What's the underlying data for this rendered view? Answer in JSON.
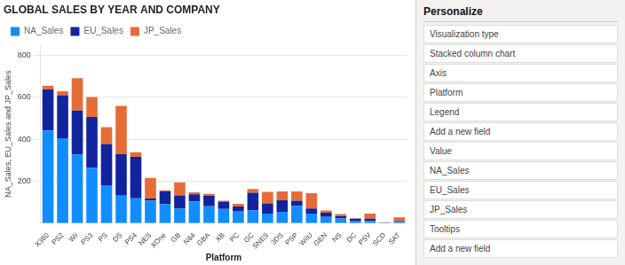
{
  "chart_data": {
    "type": "bar",
    "stacked": true,
    "title": "GLOBAL SALES BY YEAR AND COMPANY",
    "x_label": "Platform",
    "y_label": "NA_Sales, EU_Sales and JP_Sales",
    "categories": [
      "X360",
      "PS2",
      "Wii",
      "PS3",
      "PS",
      "DS",
      "PS4",
      "NES",
      "XOne",
      "GB",
      "N64",
      "GBA",
      "XB",
      "PC",
      "GC",
      "SNES",
      "3DS",
      "PSP",
      "WiiU",
      "GEN",
      "NS",
      "DC",
      "PSV",
      "SCD",
      "SAT"
    ],
    "series": [
      {
        "name": "NA_Sales",
        "color": "#118DFF",
        "values": [
          441,
          404,
          326,
          263,
          181,
          131,
          118,
          107,
          90,
          69,
          104,
          80,
          68,
          58,
          60,
          46,
          54,
          82,
          46,
          30,
          22,
          12,
          10,
          2,
          8
        ]
      },
      {
        "name": "EU_Sales",
        "color": "#12239E",
        "values": [
          195,
          205,
          210,
          243,
          196,
          197,
          198,
          10,
          61,
          63,
          33,
          51,
          35,
          21,
          85,
          48,
          55,
          25,
          24,
          20,
          12,
          9,
          11,
          0,
          2
        ]
      },
      {
        "name": "JP_Sales",
        "color": "#E66C37",
        "values": [
          18,
          19,
          154,
          95,
          80,
          230,
          22,
          98,
          5,
          62,
          10,
          8,
          4,
          13,
          18,
          55,
          42,
          44,
          73,
          10,
          10,
          2,
          25,
          2,
          18
        ]
      }
    ],
    "ylim": [
      0,
      850
    ],
    "yticks": [
      200,
      400,
      600,
      800
    ],
    "grid": true,
    "legend": "upper left",
    "annotations": [
      "Personalize",
      "Visualization type",
      "Stacked column chart",
      "Axis",
      "Platform",
      "Legend",
      "Add a new field",
      "Value",
      "NA_Sales",
      "EU_Sales",
      "JP_Sales",
      "Tooltips",
      "Add a new field"
    ]
  }
}
